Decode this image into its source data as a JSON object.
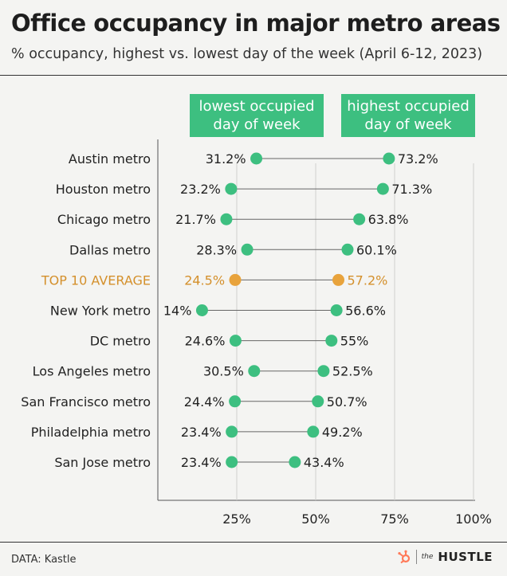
{
  "header": {
    "title": "Office occupancy in major metro areas",
    "subtitle": "% occupancy, highest vs. lowest day of the week (April 6-12, 2023)"
  },
  "legend": {
    "low_label": "lowest occupied\nday of week",
    "high_label": "highest occupied\nday of week"
  },
  "footer": {
    "source": "DATA: Kastle",
    "brand_small": "the",
    "brand_name": "HUSTLE",
    "brand_icon": "hubspot-sprocket-icon"
  },
  "colors": {
    "accent": "#3dbf80",
    "highlight": "#e8a33c",
    "highlight_text": "#d4902c",
    "background": "#f4f4f2"
  },
  "chart_data": {
    "type": "dumbbell",
    "title": "Office occupancy in major metro areas",
    "subtitle": "% occupancy, highest vs. lowest day of the week (April 6-12, 2023)",
    "xlim": [
      0,
      100
    ],
    "xticks": [
      25,
      50,
      75,
      100
    ],
    "xtick_labels": [
      "25%",
      "50%",
      "75%",
      "100%"
    ],
    "grid": "vertical",
    "legend_position": "top",
    "series": [
      {
        "name": "lowest occupied day of week"
      },
      {
        "name": "highest occupied day of week"
      }
    ],
    "rows": [
      {
        "label": "Austin metro",
        "low": 31.2,
        "high": 73.2,
        "low_label": "31.2%",
        "high_label": "73.2%",
        "highlight": false
      },
      {
        "label": "Houston metro",
        "low": 23.2,
        "high": 71.3,
        "low_label": "23.2%",
        "high_label": "71.3%",
        "highlight": false
      },
      {
        "label": "Chicago metro",
        "low": 21.7,
        "high": 63.8,
        "low_label": "21.7%",
        "high_label": "63.8%",
        "highlight": false
      },
      {
        "label": "Dallas metro",
        "low": 28.3,
        "high": 60.1,
        "low_label": "28.3%",
        "high_label": "60.1%",
        "highlight": false
      },
      {
        "label": "TOP 10 AVERAGE",
        "low": 24.5,
        "high": 57.2,
        "low_label": "24.5%",
        "high_label": "57.2%",
        "highlight": true
      },
      {
        "label": "New York metro",
        "low": 14,
        "high": 56.6,
        "low_label": "14%",
        "high_label": "56.6%",
        "highlight": false
      },
      {
        "label": "DC metro",
        "low": 24.6,
        "high": 55,
        "low_label": "24.6%",
        "high_label": "55%",
        "highlight": false
      },
      {
        "label": "Los Angeles metro",
        "low": 30.5,
        "high": 52.5,
        "low_label": "30.5%",
        "high_label": "52.5%",
        "highlight": false
      },
      {
        "label": "San Francisco metro",
        "low": 24.4,
        "high": 50.7,
        "low_label": "24.4%",
        "high_label": "50.7%",
        "highlight": false
      },
      {
        "label": "Philadelphia metro",
        "low": 23.4,
        "high": 49.2,
        "low_label": "23.4%",
        "high_label": "49.2%",
        "highlight": false
      },
      {
        "label": "San Jose metro",
        "low": 23.4,
        "high": 43.4,
        "low_label": "23.4%",
        "high_label": "43.4%",
        "highlight": false
      }
    ]
  }
}
